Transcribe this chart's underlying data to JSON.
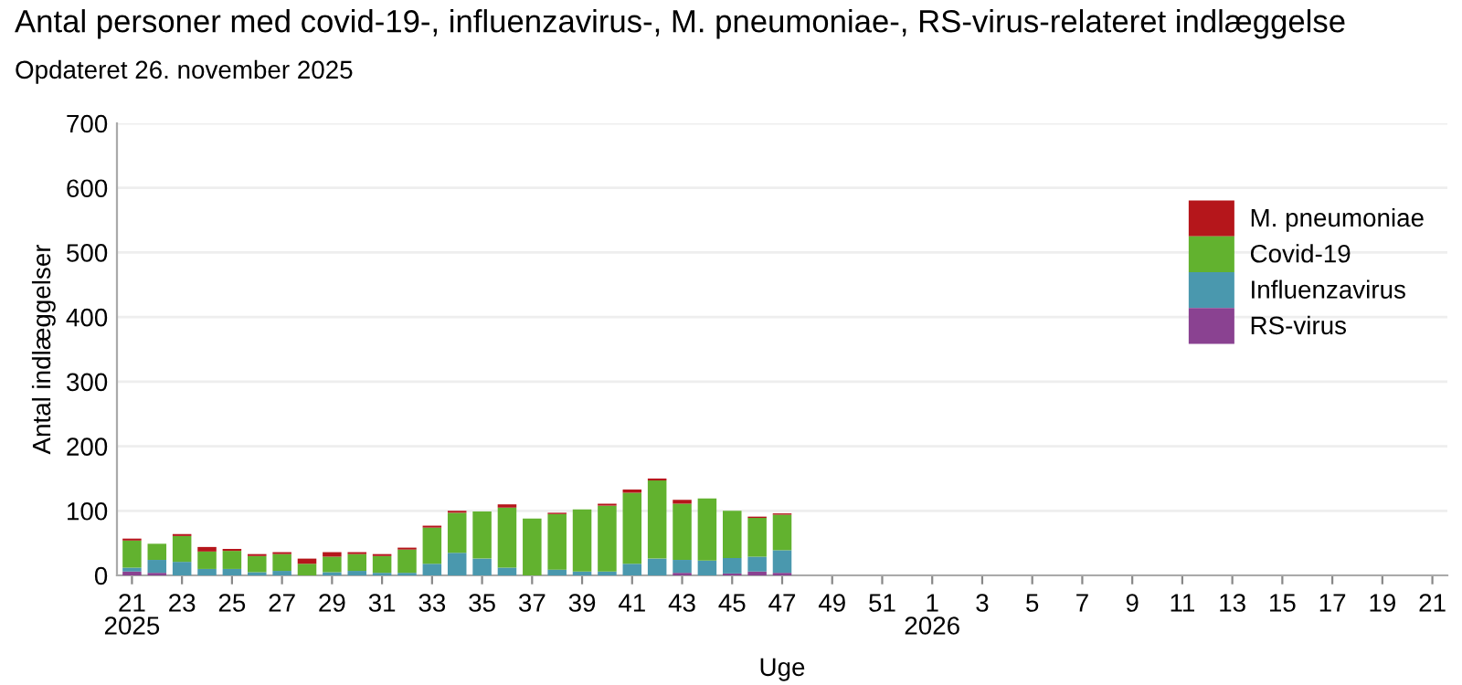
{
  "chart_data": {
    "type": "bar",
    "stacked": true,
    "title": "Antal personer med covid-19-, influenzavirus-, M. pneumoniae-, RS-virus-relateret indlæggelse",
    "subtitle": "Opdateret 26. november 2025",
    "xlabel": "Uge",
    "ylabel": "Antal indlæggelser",
    "categories": [
      "21",
      null,
      "23",
      null,
      "25",
      null,
      "27",
      null,
      "29",
      null,
      "31",
      null,
      "33",
      null,
      "35",
      null,
      "37",
      null,
      "39",
      null,
      "41",
      null,
      "43",
      null,
      "45",
      null,
      "47",
      null,
      "49",
      null,
      "51",
      null,
      "1",
      null,
      "3",
      null,
      "5",
      null,
      "7",
      null,
      "9",
      null,
      "11",
      null,
      "13",
      null,
      "15",
      null,
      "17",
      null,
      "19",
      null,
      "21"
    ],
    "annotations": [
      "2025",
      "2026"
    ],
    "series": [
      {
        "name": "RS-virus",
        "color": "#8a4291",
        "values": [
          6,
          4,
          0,
          0,
          0,
          0,
          0,
          0,
          0,
          0,
          0,
          0,
          0,
          0,
          0,
          0,
          0,
          0,
          0,
          0,
          0,
          0,
          4,
          0,
          3,
          6,
          4,
          null,
          null,
          null,
          null,
          null,
          null,
          null,
          null,
          null,
          null,
          null,
          null,
          null,
          null,
          null,
          null,
          null,
          null,
          null,
          null,
          null,
          null,
          null,
          null,
          null,
          null
        ]
      },
      {
        "name": "Influenzavirus",
        "color": "#4a98ae",
        "values": [
          6,
          20,
          21,
          10,
          10,
          5,
          7,
          0,
          5,
          7,
          4,
          4,
          18,
          35,
          26,
          12,
          0,
          9,
          6,
          6,
          18,
          26,
          20,
          23,
          24,
          23,
          35,
          null,
          null,
          null,
          null,
          null,
          null,
          null,
          null,
          null,
          null,
          null,
          null,
          null,
          null,
          null,
          null,
          null,
          null,
          null,
          null,
          null,
          null,
          null,
          null,
          null,
          null
        ]
      },
      {
        "name": "Covid-19",
        "color": "#62b22f",
        "values": [
          42,
          25,
          40,
          27,
          28,
          25,
          26,
          18,
          24,
          26,
          26,
          36,
          56,
          62,
          73,
          93,
          88,
          86,
          96,
          102,
          110,
          121,
          87,
          96,
          73,
          60,
          55,
          null,
          null,
          null,
          null,
          null,
          null,
          null,
          null,
          null,
          null,
          null,
          null,
          null,
          null,
          null,
          null,
          null,
          null,
          null,
          null,
          null,
          null,
          null,
          null,
          null,
          null
        ]
      },
      {
        "name": "M. pneumoniae",
        "color": "#b5161b",
        "values": [
          3,
          0,
          3,
          7,
          3,
          3,
          3,
          8,
          7,
          3,
          3,
          3,
          3,
          3,
          0,
          5,
          0,
          2,
          0,
          3,
          5,
          3,
          6,
          0,
          0,
          2,
          2,
          null,
          null,
          null,
          null,
          null,
          null,
          null,
          null,
          null,
          null,
          null,
          null,
          null,
          null,
          null,
          null,
          null,
          null,
          null,
          null,
          null,
          null,
          null,
          null,
          null,
          null
        ]
      }
    ],
    "ylim": [
      0,
      700
    ],
    "yticks": [
      0,
      100,
      200,
      300,
      400,
      500,
      600,
      700
    ],
    "grid": "y",
    "legend": "top right"
  }
}
